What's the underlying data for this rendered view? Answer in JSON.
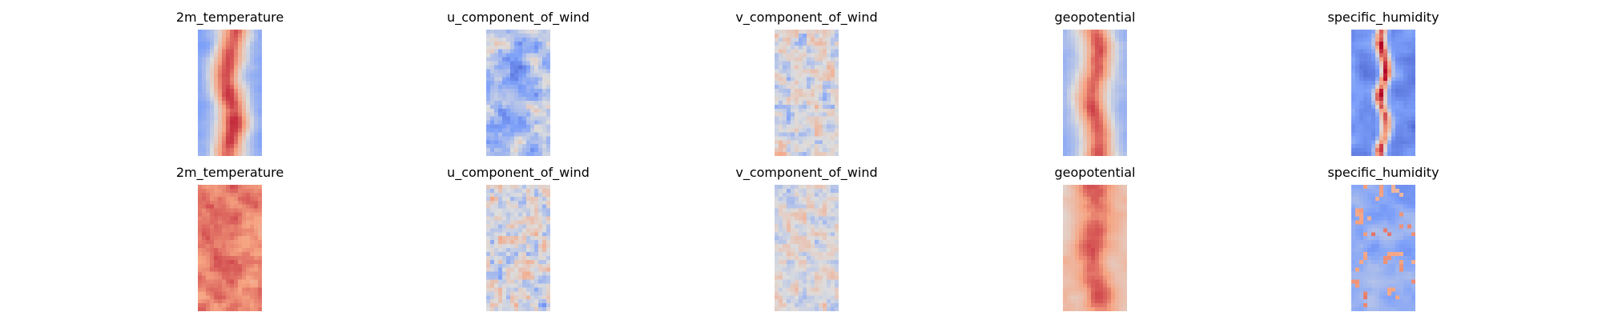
{
  "figure": {
    "background": "#ffffff"
  },
  "chart_data": [
    {
      "type": "heatmap",
      "row": 1,
      "title": "2m_temperature",
      "colormap": "coolwarm",
      "pattern": "warm central band, cool edges",
      "xlabel": "",
      "ylabel": "",
      "axes": "off"
    },
    {
      "type": "heatmap",
      "row": 1,
      "title": "u_component_of_wind",
      "colormap": "coolwarm",
      "pattern": "mostly cool streaks with scattered warm patches",
      "xlabel": "",
      "ylabel": "",
      "axes": "off"
    },
    {
      "type": "heatmap",
      "row": 1,
      "title": "v_component_of_wind",
      "colormap": "coolwarm",
      "pattern": "near-neutral noise with small warm and cool eddies",
      "xlabel": "",
      "ylabel": "",
      "axes": "off"
    },
    {
      "type": "heatmap",
      "row": 1,
      "title": "geopotential",
      "colormap": "coolwarm",
      "pattern": "warm central band, cool edges",
      "xlabel": "",
      "ylabel": "",
      "axes": "off"
    },
    {
      "type": "heatmap",
      "row": 1,
      "title": "specific_humidity",
      "colormap": "coolwarm",
      "pattern": "narrow hot central streak on a cold background",
      "xlabel": "",
      "ylabel": "",
      "axes": "off"
    },
    {
      "type": "heatmap",
      "row": 2,
      "title": "2m_temperature",
      "colormap": "coolwarm",
      "pattern": "almost uniformly warm",
      "xlabel": "",
      "ylabel": "",
      "axes": "off"
    },
    {
      "type": "heatmap",
      "row": 2,
      "title": "u_component_of_wind",
      "colormap": "coolwarm",
      "pattern": "near-neutral with warm and cool streaks",
      "xlabel": "",
      "ylabel": "",
      "axes": "off"
    },
    {
      "type": "heatmap",
      "row": 2,
      "title": "v_component_of_wind",
      "colormap": "coolwarm",
      "pattern": "near-neutral fine-grained noise",
      "xlabel": "",
      "ylabel": "",
      "axes": "off"
    },
    {
      "type": "heatmap",
      "row": 2,
      "title": "geopotential",
      "colormap": "coolwarm",
      "pattern": "mostly warm with lighter edges",
      "xlabel": "",
      "ylabel": "",
      "axes": "off"
    },
    {
      "type": "heatmap",
      "row": 2,
      "title": "specific_humidity",
      "colormap": "coolwarm",
      "pattern": "mostly cool-neutral with scattered warm specks",
      "xlabel": "",
      "ylabel": "",
      "axes": "off"
    }
  ]
}
